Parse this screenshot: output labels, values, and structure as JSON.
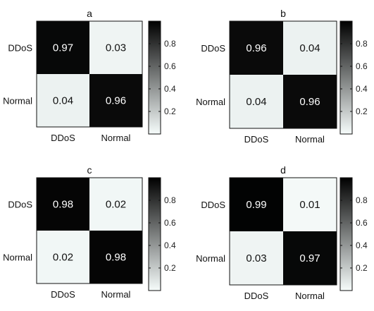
{
  "chart_data": [
    {
      "type": "heatmap",
      "title": "a",
      "rows": [
        "DDoS",
        "Normal"
      ],
      "cols": [
        "DDoS",
        "Normal"
      ],
      "values": [
        [
          0.97,
          0.03
        ],
        [
          0.04,
          0.96
        ]
      ],
      "colorbar": {
        "ticks": [
          "0.2",
          "0.4",
          "0.6",
          "0.8"
        ],
        "range": [
          0,
          1
        ],
        "low_color": "#f6fcfb",
        "high_color": "#000000"
      }
    },
    {
      "type": "heatmap",
      "title": "b",
      "rows": [
        "DDoS",
        "Normal"
      ],
      "cols": [
        "DDoS",
        "Normal"
      ],
      "values": [
        [
          0.96,
          0.04
        ],
        [
          0.04,
          0.96
        ]
      ],
      "colorbar": {
        "ticks": [
          "0.2",
          "0.4",
          "0.6",
          "0.8"
        ],
        "range": [
          0,
          1
        ],
        "low_color": "#f6fcfb",
        "high_color": "#000000"
      }
    },
    {
      "type": "heatmap",
      "title": "c",
      "rows": [
        "DDoS",
        "Normal"
      ],
      "cols": [
        "DDoS",
        "Normal"
      ],
      "values": [
        [
          0.98,
          0.02
        ],
        [
          0.02,
          0.98
        ]
      ],
      "colorbar": {
        "ticks": [
          "0.2",
          "0.4",
          "0.6",
          "0.8"
        ],
        "range": [
          0,
          1
        ],
        "low_color": "#f6fcfb",
        "high_color": "#000000"
      }
    },
    {
      "type": "heatmap",
      "title": "d",
      "rows": [
        "DDoS",
        "Normal"
      ],
      "cols": [
        "DDoS",
        "Normal"
      ],
      "values": [
        [
          0.99,
          0.01
        ],
        [
          0.03,
          0.97
        ]
      ],
      "colorbar": {
        "ticks": [
          "0.2",
          "0.4",
          "0.6",
          "0.8"
        ],
        "range": [
          0,
          1
        ],
        "low_color": "#f6fcfb",
        "high_color": "#000000"
      }
    }
  ]
}
